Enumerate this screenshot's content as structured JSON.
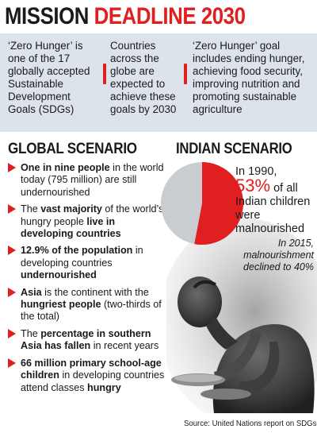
{
  "title": {
    "part1": "MISSION ",
    "part2": "DEADLINE 2030"
  },
  "facts": [
    "‘Zero Hunger’ is one of the 17 globally accepted Sustainable Development Goals (SDGs)",
    "Countries across the globe are expected to achieve these goals by 2030",
    "‘Zero Hunger’ goal includes ending hunger, achieving food security, improving nutrition and promoting sustainable agriculture"
  ],
  "global": {
    "heading": "GLOBAL SCENARIO",
    "bullets": [
      [
        {
          "b": true,
          "t": "One in nine people"
        },
        {
          "b": false,
          "t": " in the world today (795 million) are still undernourished"
        }
      ],
      [
        {
          "b": false,
          "t": "The "
        },
        {
          "b": true,
          "t": "vast majority"
        },
        {
          "b": false,
          "t": " of the world’s hungry people "
        },
        {
          "b": true,
          "t": "live in developing countries"
        }
      ],
      [
        {
          "b": true,
          "t": "12.9% of the population"
        },
        {
          "b": false,
          "t": " in developing countries "
        },
        {
          "b": true,
          "t": "undernourished"
        }
      ],
      [
        {
          "b": true,
          "t": "Asia"
        },
        {
          "b": false,
          "t": " is the continent with the "
        },
        {
          "b": true,
          "t": "hungriest people"
        },
        {
          "b": false,
          "t": " (two-thirds of the total)"
        }
      ],
      [
        {
          "b": false,
          "t": "The "
        },
        {
          "b": true,
          "t": "percentage in southern Asia has fallen"
        },
        {
          "b": false,
          "t": " in recent years"
        }
      ],
      [
        {
          "b": true,
          "t": "66 million primary school-age children"
        },
        {
          "b": false,
          "t": " in developing countries attend classes "
        },
        {
          "b": true,
          "t": "hungry"
        }
      ]
    ]
  },
  "indian": {
    "heading": "INDIAN SCENARIO",
    "stat_prefix": "In 1990, ",
    "stat_value": "53%",
    "stat_suffix": " of all Indian children were malnourished",
    "pie_fraction": 0.53,
    "colors": {
      "accent": "#e02020",
      "rest": "#c9cdd1"
    },
    "stat2": "In 2015, malnourishment declined to 40%"
  },
  "source": "Source: United Nations report on SDGs"
}
